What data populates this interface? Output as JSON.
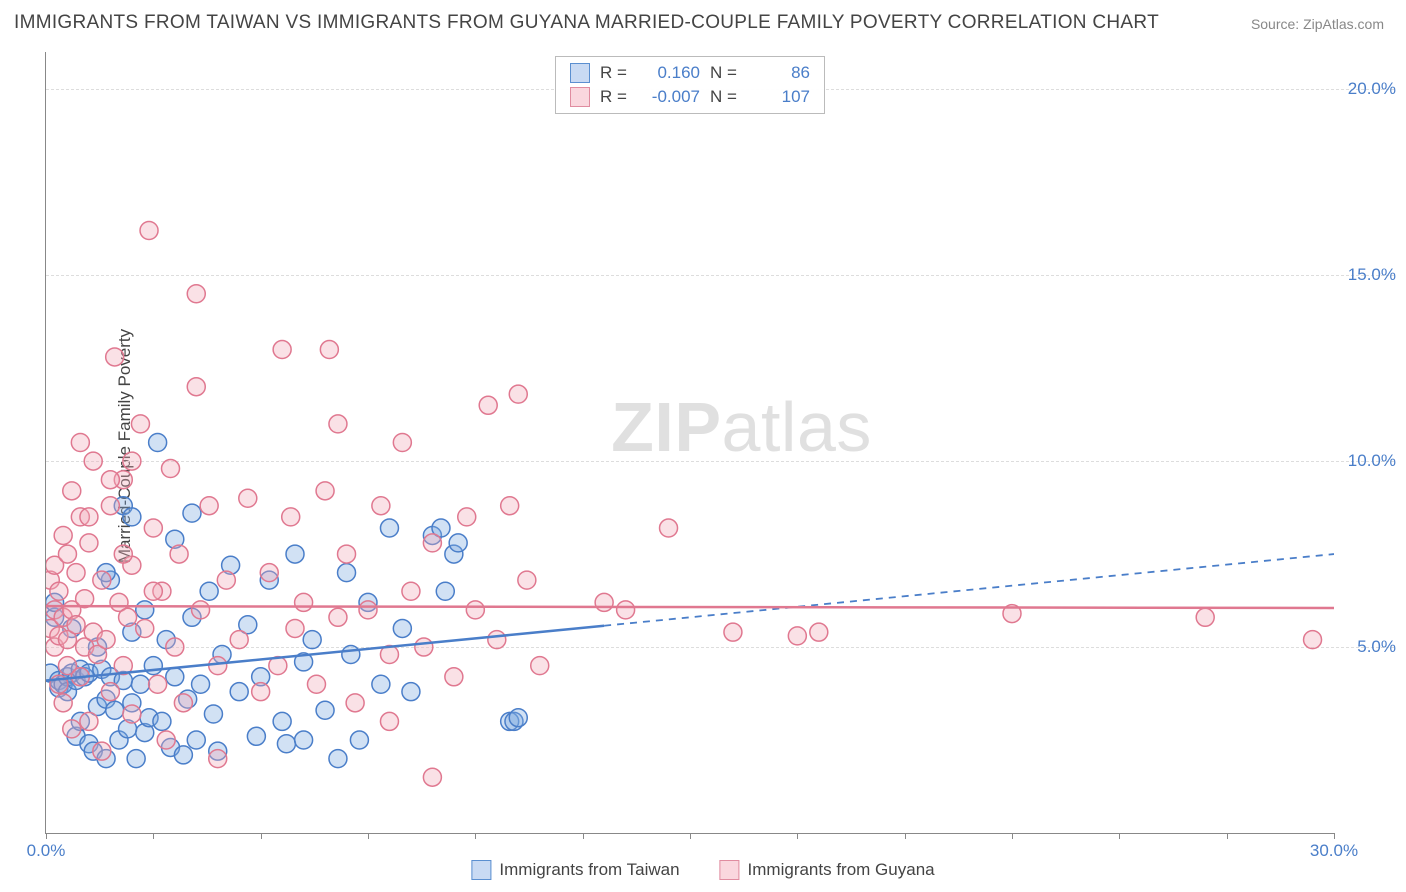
{
  "title": "IMMIGRANTS FROM TAIWAN VS IMMIGRANTS FROM GUYANA MARRIED-COUPLE FAMILY POVERTY CORRELATION CHART",
  "source": "Source: ZipAtlas.com",
  "ylabel": "Married-Couple Family Poverty",
  "watermark_zip": "ZIP",
  "watermark_atlas": "atlas",
  "chart": {
    "type": "scatter",
    "xlim": [
      0,
      30
    ],
    "ylim": [
      0,
      21
    ],
    "xticks": [
      {
        "v": 0,
        "l": "0.0%"
      },
      {
        "v": 30,
        "l": "30.0%"
      }
    ],
    "xtick_marks": [
      0,
      2.5,
      5,
      7.5,
      10,
      12.5,
      15,
      17.5,
      20,
      22.5,
      25,
      27.5,
      30
    ],
    "yticks": [
      {
        "v": 5,
        "l": "5.0%"
      },
      {
        "v": 10,
        "l": "10.0%"
      },
      {
        "v": 15,
        "l": "15.0%"
      },
      {
        "v": 20,
        "l": "20.0%"
      }
    ],
    "point_radius": 9,
    "series": [
      {
        "name": "Immigrants from Taiwan",
        "color_fill": "#7aa8e0",
        "color_stroke": "#4a7ec9",
        "R": "0.160",
        "N": "86",
        "trend": {
          "x1": 0,
          "y1": 4.1,
          "x2": 30,
          "y2": 7.5,
          "solid_until": 13
        },
        "points": [
          [
            0.1,
            4.3
          ],
          [
            0.2,
            5.8
          ],
          [
            0.2,
            6.2
          ],
          [
            0.3,
            3.9
          ],
          [
            0.3,
            4.1
          ],
          [
            0.4,
            4.0
          ],
          [
            0.5,
            4.2
          ],
          [
            0.5,
            3.8
          ],
          [
            0.6,
            4.3
          ],
          [
            0.6,
            5.5
          ],
          [
            0.7,
            2.6
          ],
          [
            0.7,
            4.1
          ],
          [
            0.8,
            4.4
          ],
          [
            0.8,
            3.0
          ],
          [
            0.9,
            4.2
          ],
          [
            1.0,
            2.4
          ],
          [
            1.0,
            4.3
          ],
          [
            1.1,
            2.2
          ],
          [
            1.2,
            5.0
          ],
          [
            1.2,
            3.4
          ],
          [
            1.3,
            4.4
          ],
          [
            1.4,
            2.0
          ],
          [
            1.4,
            3.6
          ],
          [
            1.5,
            4.2
          ],
          [
            1.5,
            6.8
          ],
          [
            1.6,
            3.3
          ],
          [
            1.7,
            2.5
          ],
          [
            1.8,
            4.1
          ],
          [
            1.8,
            8.8
          ],
          [
            1.9,
            2.8
          ],
          [
            2.0,
            3.5
          ],
          [
            2.0,
            5.4
          ],
          [
            2.1,
            2.0
          ],
          [
            2.2,
            4.0
          ],
          [
            2.3,
            6.0
          ],
          [
            2.3,
            2.7
          ],
          [
            2.4,
            3.1
          ],
          [
            2.5,
            4.5
          ],
          [
            2.6,
            10.5
          ],
          [
            2.7,
            3.0
          ],
          [
            2.8,
            5.2
          ],
          [
            2.9,
            2.3
          ],
          [
            3.0,
            7.9
          ],
          [
            3.0,
            4.2
          ],
          [
            3.2,
            2.1
          ],
          [
            3.3,
            3.6
          ],
          [
            3.4,
            5.8
          ],
          [
            3.4,
            8.6
          ],
          [
            3.5,
            2.5
          ],
          [
            3.6,
            4.0
          ],
          [
            3.8,
            6.5
          ],
          [
            3.9,
            3.2
          ],
          [
            4.0,
            2.2
          ],
          [
            4.1,
            4.8
          ],
          [
            4.3,
            7.2
          ],
          [
            4.5,
            3.8
          ],
          [
            4.7,
            5.6
          ],
          [
            4.9,
            2.6
          ],
          [
            5.0,
            4.2
          ],
          [
            5.2,
            6.8
          ],
          [
            5.5,
            3.0
          ],
          [
            5.6,
            2.4
          ],
          [
            5.8,
            7.5
          ],
          [
            6.0,
            4.6
          ],
          [
            6.0,
            2.5
          ],
          [
            6.2,
            5.2
          ],
          [
            6.5,
            3.3
          ],
          [
            6.8,
            2.0
          ],
          [
            7.0,
            7.0
          ],
          [
            7.1,
            4.8
          ],
          [
            7.3,
            2.5
          ],
          [
            7.5,
            6.2
          ],
          [
            7.8,
            4.0
          ],
          [
            8.0,
            8.2
          ],
          [
            8.3,
            5.5
          ],
          [
            8.5,
            3.8
          ],
          [
            9.0,
            8.0
          ],
          [
            9.2,
            8.2
          ],
          [
            9.3,
            6.5
          ],
          [
            9.5,
            7.5
          ],
          [
            9.6,
            7.8
          ],
          [
            10.8,
            3.0
          ],
          [
            10.9,
            3.0
          ],
          [
            11.0,
            3.1
          ],
          [
            2.0,
            8.5
          ],
          [
            1.4,
            7.0
          ]
        ]
      },
      {
        "name": "Immigrants from Guyana",
        "color_fill": "#f0a8b8",
        "color_stroke": "#e07890",
        "R": "-0.007",
        "N": "107",
        "trend": {
          "x1": 0,
          "y1": 6.1,
          "x2": 30,
          "y2": 6.05,
          "solid_until": 30
        },
        "points": [
          [
            0.1,
            5.5
          ],
          [
            0.1,
            6.8
          ],
          [
            0.2,
            5.0
          ],
          [
            0.2,
            6.0
          ],
          [
            0.2,
            7.2
          ],
          [
            0.3,
            5.3
          ],
          [
            0.3,
            6.5
          ],
          [
            0.3,
            4.0
          ],
          [
            0.4,
            5.8
          ],
          [
            0.4,
            8.0
          ],
          [
            0.4,
            3.5
          ],
          [
            0.5,
            5.2
          ],
          [
            0.5,
            7.5
          ],
          [
            0.5,
            4.5
          ],
          [
            0.6,
            6.0
          ],
          [
            0.6,
            9.2
          ],
          [
            0.6,
            2.8
          ],
          [
            0.7,
            5.6
          ],
          [
            0.7,
            7.0
          ],
          [
            0.8,
            4.2
          ],
          [
            0.8,
            8.5
          ],
          [
            0.9,
            5.0
          ],
          [
            0.9,
            6.3
          ],
          [
            1.0,
            3.0
          ],
          [
            1.0,
            7.8
          ],
          [
            1.1,
            5.4
          ],
          [
            1.1,
            10.0
          ],
          [
            1.2,
            4.8
          ],
          [
            1.3,
            6.8
          ],
          [
            1.3,
            2.2
          ],
          [
            1.4,
            5.2
          ],
          [
            1.5,
            8.8
          ],
          [
            1.5,
            3.8
          ],
          [
            1.6,
            12.8
          ],
          [
            1.7,
            6.2
          ],
          [
            1.8,
            4.5
          ],
          [
            1.8,
            9.5
          ],
          [
            1.9,
            5.8
          ],
          [
            2.0,
            3.2
          ],
          [
            2.0,
            7.2
          ],
          [
            2.2,
            11.0
          ],
          [
            2.3,
            5.5
          ],
          [
            2.4,
            16.2
          ],
          [
            2.5,
            8.2
          ],
          [
            2.6,
            4.0
          ],
          [
            2.7,
            6.5
          ],
          [
            2.8,
            2.5
          ],
          [
            2.9,
            9.8
          ],
          [
            3.0,
            5.0
          ],
          [
            3.1,
            7.5
          ],
          [
            3.2,
            3.5
          ],
          [
            3.5,
            14.5
          ],
          [
            3.5,
            12.0
          ],
          [
            3.6,
            6.0
          ],
          [
            3.8,
            8.8
          ],
          [
            4.0,
            4.5
          ],
          [
            4.0,
            2.0
          ],
          [
            4.2,
            6.8
          ],
          [
            4.5,
            5.2
          ],
          [
            4.7,
            9.0
          ],
          [
            5.0,
            3.8
          ],
          [
            5.2,
            7.0
          ],
          [
            5.4,
            4.5
          ],
          [
            5.5,
            13.0
          ],
          [
            5.7,
            8.5
          ],
          [
            5.8,
            5.5
          ],
          [
            6.0,
            6.2
          ],
          [
            6.3,
            4.0
          ],
          [
            6.5,
            9.2
          ],
          [
            6.6,
            13.0
          ],
          [
            6.8,
            11.0
          ],
          [
            6.8,
            5.8
          ],
          [
            7.0,
            7.5
          ],
          [
            7.2,
            3.5
          ],
          [
            7.5,
            6.0
          ],
          [
            7.8,
            8.8
          ],
          [
            8.0,
            4.8
          ],
          [
            8.0,
            3.0
          ],
          [
            8.3,
            10.5
          ],
          [
            8.5,
            6.5
          ],
          [
            8.8,
            5.0
          ],
          [
            9.0,
            1.5
          ],
          [
            9.0,
            7.8
          ],
          [
            9.5,
            4.2
          ],
          [
            9.8,
            8.5
          ],
          [
            10.0,
            6.0
          ],
          [
            10.3,
            11.5
          ],
          [
            10.5,
            5.2
          ],
          [
            10.8,
            8.8
          ],
          [
            11.0,
            11.8
          ],
          [
            11.2,
            6.8
          ],
          [
            11.5,
            4.5
          ],
          [
            13.0,
            6.2
          ],
          [
            13.5,
            6.0
          ],
          [
            14.5,
            8.2
          ],
          [
            16.0,
            5.4
          ],
          [
            17.5,
            5.3
          ],
          [
            18.0,
            5.4
          ],
          [
            22.5,
            5.9
          ],
          [
            27.0,
            5.8
          ],
          [
            29.5,
            5.2
          ],
          [
            2.0,
            10.0
          ],
          [
            1.5,
            9.5
          ],
          [
            1.0,
            8.5
          ],
          [
            0.8,
            10.5
          ],
          [
            1.8,
            7.5
          ],
          [
            2.5,
            6.5
          ]
        ]
      }
    ]
  },
  "legend_labels": {
    "R": "R =",
    "N": "N ="
  }
}
